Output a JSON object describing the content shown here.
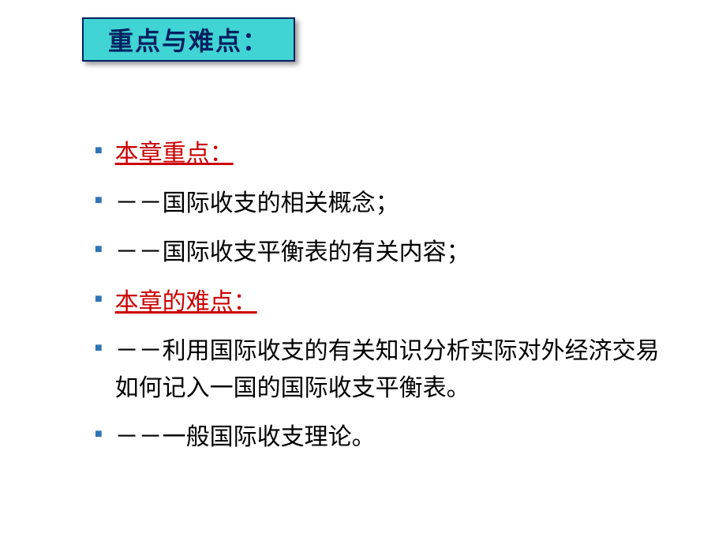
{
  "title": "重点与难点：",
  "items": [
    {
      "text": "本章重点：",
      "style": "red-underline"
    },
    {
      "text": "－－国际收支的相关概念；",
      "style": "black-text"
    },
    {
      "text": "－－国际收支平衡表的有关内容；",
      "style": "black-text"
    },
    {
      "text": "本章的难点：",
      "style": "red-underline"
    },
    {
      "text": "－－利用国际收支的有关知识分析实际对外经济交易如何记入一国的国际收支平衡表。",
      "style": "black-text"
    },
    {
      "text": "－－一般国际收支理论。",
      "style": "black-text"
    }
  ],
  "colors": {
    "title_bg": "#40d4d4",
    "title_border": "#002060",
    "title_text": "#002060",
    "bullet": "#2e75b6",
    "red": "#cc0000",
    "black": "#000000",
    "background": "#ffffff"
  }
}
